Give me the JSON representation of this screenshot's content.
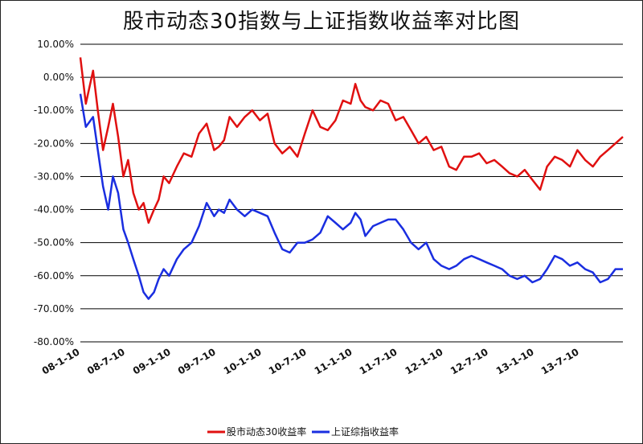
{
  "chart_data": {
    "type": "line",
    "title": "股市动态30指数与上证指数收益率对比图",
    "y_tick_labels": [
      "10.00%",
      "0.00%",
      "-10.00%",
      "-20.00%",
      "-30.00%",
      "-40.00%",
      "-50.00%",
      "-60.00%",
      "-70.00%",
      "-80.00%"
    ],
    "y_tick_values": [
      10,
      0,
      -10,
      -20,
      -30,
      -40,
      -50,
      -60,
      -70,
      -80
    ],
    "ylim": [
      -80,
      10
    ],
    "x_tick_labels": [
      "08-1-10",
      "08-7-10",
      "09-1-10",
      "09-7-10",
      "10-1-10",
      "10-7-10",
      "11-1-10",
      "11-7-10",
      "12-1-10",
      "12-7-10",
      "13-1-10",
      "13-7-10"
    ],
    "x_tick_values": [
      "2008-01-10",
      "2008-07-10",
      "2009-01-10",
      "2009-07-10",
      "2010-01-10",
      "2010-07-10",
      "2011-01-10",
      "2011-07-10",
      "2012-01-10",
      "2012-07-10",
      "2013-01-10",
      "2013-07-10"
    ],
    "xlim": [
      "2008-01-10",
      "2013-12-31"
    ],
    "grid": true,
    "legend_position": "bottom",
    "series": [
      {
        "name": "股市动态30收益率",
        "color": "#e01010",
        "x": [
          "2008-01-10",
          "2008-02-01",
          "2008-03-01",
          "2008-03-20",
          "2008-04-10",
          "2008-05-01",
          "2008-05-20",
          "2008-06-10",
          "2008-07-01",
          "2008-07-20",
          "2008-08-10",
          "2008-09-01",
          "2008-09-20",
          "2008-10-10",
          "2008-11-01",
          "2008-11-20",
          "2008-12-10",
          "2009-01-01",
          "2009-02-01",
          "2009-03-01",
          "2009-04-01",
          "2009-05-01",
          "2009-06-01",
          "2009-07-01",
          "2009-07-20",
          "2009-08-10",
          "2009-09-01",
          "2009-10-01",
          "2009-11-01",
          "2009-12-01",
          "2010-01-01",
          "2010-02-01",
          "2010-03-01",
          "2010-04-01",
          "2010-05-01",
          "2010-06-01",
          "2010-07-01",
          "2010-08-01",
          "2010-09-01",
          "2010-10-01",
          "2010-11-01",
          "2010-12-01",
          "2011-01-01",
          "2011-01-20",
          "2011-02-10",
          "2011-03-01",
          "2011-04-01",
          "2011-05-01",
          "2011-06-01",
          "2011-07-01",
          "2011-08-01",
          "2011-09-01",
          "2011-10-01",
          "2011-11-01",
          "2011-12-01",
          "2012-01-01",
          "2012-02-01",
          "2012-03-01",
          "2012-04-01",
          "2012-05-01",
          "2012-06-01",
          "2012-07-01",
          "2012-08-01",
          "2012-09-01",
          "2012-10-01",
          "2012-11-01",
          "2012-12-01",
          "2013-01-01",
          "2013-02-01",
          "2013-03-01",
          "2013-04-01",
          "2013-05-01",
          "2013-06-01",
          "2013-07-01",
          "2013-08-01",
          "2013-09-01",
          "2013-10-01",
          "2013-11-01",
          "2013-12-01",
          "2013-12-31"
        ],
        "values": [
          6,
          -8,
          2,
          -10,
          -22,
          -15,
          -8,
          -18,
          -30,
          -25,
          -35,
          -40,
          -38,
          -44,
          -40,
          -37,
          -30,
          -32,
          -27,
          -23,
          -24,
          -17,
          -14,
          -22,
          -21,
          -19,
          -12,
          -15,
          -12,
          -10,
          -13,
          -11,
          -20,
          -23,
          -21,
          -24,
          -17,
          -10,
          -15,
          -16,
          -13,
          -7,
          -8,
          -2,
          -7,
          -9,
          -10,
          -7,
          -8,
          -13,
          -12,
          -16,
          -20,
          -18,
          -22,
          -21,
          -27,
          -28,
          -24,
          -24,
          -23,
          -26,
          -25,
          -27,
          -29,
          -30,
          -28,
          -31,
          -34,
          -27,
          -24,
          -25,
          -27,
          -22,
          -25,
          -27,
          -24,
          -22,
          -20,
          -18
        ]
      },
      {
        "name": "上证综指收益率",
        "color": "#1a2ee0",
        "x": [
          "2008-01-10",
          "2008-02-01",
          "2008-03-01",
          "2008-03-20",
          "2008-04-10",
          "2008-05-01",
          "2008-05-20",
          "2008-06-10",
          "2008-07-01",
          "2008-07-20",
          "2008-08-10",
          "2008-09-01",
          "2008-09-20",
          "2008-10-10",
          "2008-11-01",
          "2008-11-20",
          "2008-12-10",
          "2009-01-01",
          "2009-02-01",
          "2009-03-01",
          "2009-04-01",
          "2009-05-01",
          "2009-06-01",
          "2009-07-01",
          "2009-07-20",
          "2009-08-10",
          "2009-09-01",
          "2009-10-01",
          "2009-11-01",
          "2009-12-01",
          "2010-01-01",
          "2010-02-01",
          "2010-03-01",
          "2010-04-01",
          "2010-05-01",
          "2010-06-01",
          "2010-07-01",
          "2010-08-01",
          "2010-09-01",
          "2010-10-01",
          "2010-11-01",
          "2010-12-01",
          "2011-01-01",
          "2011-01-20",
          "2011-02-10",
          "2011-03-01",
          "2011-04-01",
          "2011-05-01",
          "2011-06-01",
          "2011-07-01",
          "2011-08-01",
          "2011-09-01",
          "2011-10-01",
          "2011-11-01",
          "2011-12-01",
          "2012-01-01",
          "2012-02-01",
          "2012-03-01",
          "2012-04-01",
          "2012-05-01",
          "2012-06-01",
          "2012-07-01",
          "2012-08-01",
          "2012-09-01",
          "2012-10-01",
          "2012-11-01",
          "2012-12-01",
          "2013-01-01",
          "2013-02-01",
          "2013-03-01",
          "2013-04-01",
          "2013-05-01",
          "2013-06-01",
          "2013-07-01",
          "2013-08-01",
          "2013-09-01",
          "2013-10-01",
          "2013-11-01",
          "2013-12-01",
          "2013-12-31"
        ],
        "values": [
          -5,
          -15,
          -12,
          -22,
          -33,
          -40,
          -30,
          -35,
          -46,
          -50,
          -55,
          -60,
          -65,
          -67,
          -65,
          -61,
          -58,
          -60,
          -55,
          -52,
          -50,
          -45,
          -38,
          -42,
          -40,
          -41,
          -37,
          -40,
          -42,
          -40,
          -41,
          -42,
          -47,
          -52,
          -53,
          -50,
          -50,
          -49,
          -47,
          -42,
          -44,
          -46,
          -44,
          -41,
          -43,
          -48,
          -45,
          -44,
          -43,
          -43,
          -46,
          -50,
          -52,
          -50,
          -55,
          -57,
          -58,
          -57,
          -55,
          -54,
          -55,
          -56,
          -57,
          -58,
          -60,
          -61,
          -60,
          -62,
          -61,
          -58,
          -54,
          -55,
          -57,
          -56,
          -58,
          -59,
          -62,
          -61,
          -58,
          -58
        ]
      }
    ]
  }
}
